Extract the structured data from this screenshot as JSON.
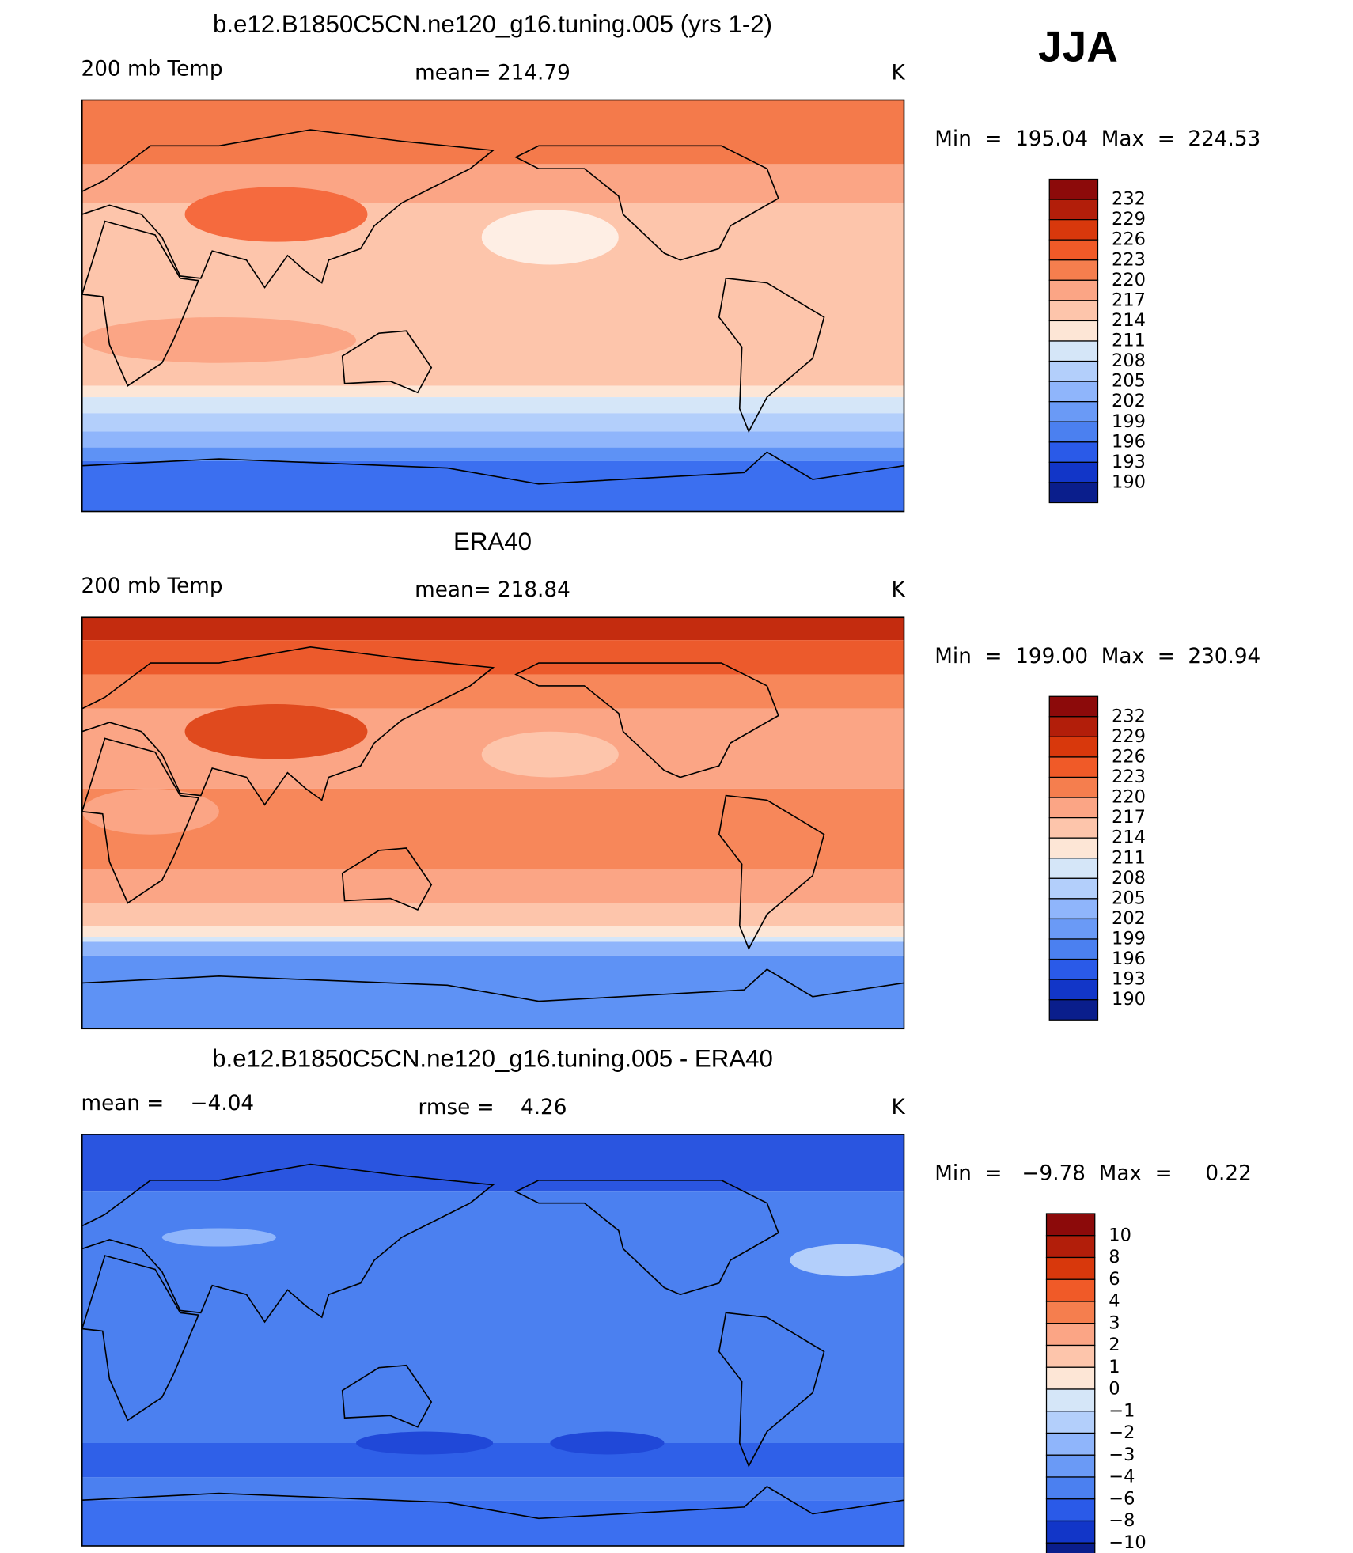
{
  "season": "JJA",
  "panels": [
    {
      "title": "b.e12.B1850C5CN.ne120_g16.tuning.005 (yrs 1-2)",
      "left_label": "200 mb Temp",
      "center_label": "mean= 214.79",
      "unit": "K",
      "min_max": "Min  =  195.04  Max  =  224.53",
      "colorbar": {
        "labels": [
          "232",
          "229",
          "226",
          "223",
          "220",
          "217",
          "214",
          "211",
          "208",
          "205",
          "202",
          "199",
          "196",
          "193",
          "190"
        ],
        "colors": [
          "#8c0a0a",
          "#b21e0a",
          "#d8380c",
          "#f05a28",
          "#f57e4e",
          "#fba585",
          "#fdc5ab",
          "#fde6d6",
          "#d5e6f8",
          "#b3cffb",
          "#8fb5fb",
          "#6a9af6",
          "#4b80f0",
          "#2a5ae8",
          "#1236c8",
          "#0a1e8c"
        ]
      }
    },
    {
      "title": "ERA40",
      "left_label": "200 mb Temp",
      "center_label": "mean= 218.84",
      "unit": "K",
      "min_max": "Min  =  199.00  Max  =  230.94",
      "colorbar": {
        "labels": [
          "232",
          "229",
          "226",
          "223",
          "220",
          "217",
          "214",
          "211",
          "208",
          "205",
          "202",
          "199",
          "196",
          "193",
          "190"
        ],
        "colors": [
          "#8c0a0a",
          "#b21e0a",
          "#d8380c",
          "#f05a28",
          "#f57e4e",
          "#fba585",
          "#fdc5ab",
          "#fde6d6",
          "#d5e6f8",
          "#b3cffb",
          "#8fb5fb",
          "#6a9af6",
          "#4b80f0",
          "#2a5ae8",
          "#1236c8",
          "#0a1e8c"
        ]
      }
    },
    {
      "title": "b.e12.B1850C5CN.ne120_g16.tuning.005 - ERA40",
      "left_label": "mean =    −4.04",
      "center_label": "rmse =    4.26",
      "unit": "K",
      "min_max": "Min  =   −9.78  Max  =     0.22",
      "colorbar": {
        "labels": [
          "10",
          "8",
          "6",
          "4",
          "3",
          "2",
          "1",
          "0",
          "−1",
          "−2",
          "−3",
          "−4",
          "−6",
          "−8",
          "−10"
        ],
        "colors": [
          "#8c0a0a",
          "#b21e0a",
          "#d8380c",
          "#f05a28",
          "#f57e4e",
          "#fba585",
          "#fdc5ab",
          "#fde6d6",
          "#d5e6f8",
          "#b3cffb",
          "#8fb5fb",
          "#6a9af6",
          "#4b80f0",
          "#2a5ae8",
          "#1236c8",
          "#0a1e8c"
        ]
      }
    }
  ]
}
